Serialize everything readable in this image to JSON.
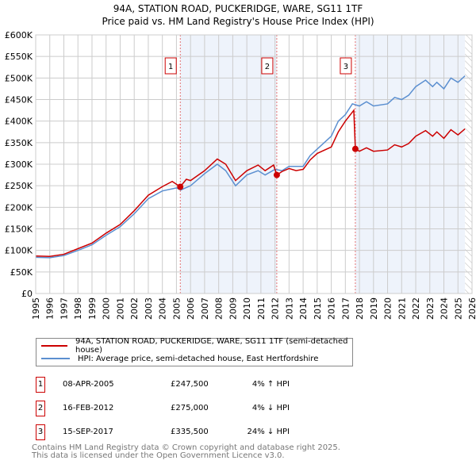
{
  "chart_data": {
    "type": "line",
    "title": "94A, STATION ROAD, PUCKERIDGE, WARE, SG11 1TF",
    "subtitle": "Price paid vs. HM Land Registry's House Price Index (HPI)",
    "xlim": [
      1995,
      2026
    ],
    "ylim": [
      0,
      600000
    ],
    "x_ticks": [
      "1995",
      "1996",
      "1997",
      "1998",
      "1999",
      "2000",
      "2001",
      "2002",
      "2003",
      "2004",
      "2005",
      "2006",
      "2007",
      "2008",
      "2009",
      "2010",
      "2011",
      "2012",
      "2013",
      "2014",
      "2015",
      "2016",
      "2017",
      "2018",
      "2019",
      "2020",
      "2021",
      "2022",
      "2023",
      "2024",
      "2025",
      "2026"
    ],
    "y_ticks": [
      {
        "v": 0,
        "label": "£0"
      },
      {
        "v": 50000,
        "label": "£50K"
      },
      {
        "v": 100000,
        "label": "£100K"
      },
      {
        "v": 150000,
        "label": "£150K"
      },
      {
        "v": 200000,
        "label": "£200K"
      },
      {
        "v": 250000,
        "label": "£250K"
      },
      {
        "v": 300000,
        "label": "£300K"
      },
      {
        "v": 350000,
        "label": "£350K"
      },
      {
        "v": 400000,
        "label": "£400K"
      },
      {
        "v": 450000,
        "label": "£450K"
      },
      {
        "v": 500000,
        "label": "£500K"
      },
      {
        "v": 550000,
        "label": "£550K"
      },
      {
        "v": 600000,
        "label": "£600K"
      }
    ],
    "grid": true,
    "series": [
      {
        "name": "94A, STATION ROAD, PUCKERIDGE, WARE, SG11 1TF (semi-detached house)",
        "color": "#cc0000",
        "x": [
          1995,
          1996,
          1997,
          1998,
          1999,
          2000,
          2001,
          2002,
          2003,
          2004,
          2004.7,
          2005.27,
          2005.7,
          2006,
          2007,
          2007.9,
          2008.5,
          2009.2,
          2010,
          2010.8,
          2011.3,
          2011.9,
          2012.13,
          2012.5,
          2013,
          2013.5,
          2014,
          2014.5,
          2015,
          2016,
          2016.5,
          2017,
          2017.6,
          2017.71,
          2018,
          2018.5,
          2019,
          2020,
          2020.5,
          2021,
          2021.5,
          2022,
          2022.7,
          2023.2,
          2023.5,
          2024,
          2024.5,
          2025,
          2025.5
        ],
        "y": [
          87000,
          86000,
          91000,
          104000,
          117000,
          140000,
          160000,
          192000,
          228000,
          248000,
          260000,
          247500,
          265000,
          262000,
          285000,
          312000,
          300000,
          262000,
          285000,
          298000,
          285000,
          298000,
          275000,
          283000,
          290000,
          285000,
          288000,
          310000,
          325000,
          340000,
          375000,
          400000,
          425000,
          335500,
          330000,
          338000,
          330000,
          333000,
          345000,
          340000,
          348000,
          365000,
          378000,
          365000,
          375000,
          360000,
          380000,
          368000,
          382000
        ]
      },
      {
        "name": "HPI: Average price, semi-detached house, East Hertfordshire",
        "color": "#5b8fd0",
        "x": [
          1995,
          1996,
          1997,
          1998,
          1999,
          2000,
          2001,
          2002,
          2003,
          2004,
          2005,
          2005.3,
          2006,
          2007,
          2007.9,
          2008.5,
          2009.2,
          2010,
          2010.8,
          2011.3,
          2012,
          2012.5,
          2013,
          2014,
          2014.5,
          2015,
          2016,
          2016.5,
          2017,
          2017.5,
          2018,
          2018.5,
          2019,
          2020,
          2020.5,
          2021,
          2021.5,
          2022,
          2022.7,
          2023.2,
          2023.5,
          2024,
          2024.5,
          2025,
          2025.5
        ],
        "y": [
          84000,
          83000,
          88000,
          100000,
          113000,
          135000,
          155000,
          185000,
          220000,
          238000,
          245000,
          240000,
          250000,
          278000,
          300000,
          285000,
          250000,
          275000,
          285000,
          275000,
          288000,
          285000,
          295000,
          295000,
          320000,
          335000,
          365000,
          400000,
          415000,
          440000,
          435000,
          445000,
          435000,
          440000,
          455000,
          450000,
          460000,
          480000,
          495000,
          480000,
          490000,
          475000,
          500000,
          490000,
          505000
        ]
      }
    ],
    "sales": [
      {
        "label": "1",
        "x": 2005.27,
        "y": 247500,
        "date": "08-APR-2005",
        "price": "£247,500",
        "hpi": "4% ↑ HPI"
      },
      {
        "label": "2",
        "x": 2012.13,
        "y": 275000,
        "date": "16-FEB-2012",
        "price": "£275,000",
        "hpi": "4% ↓ HPI"
      },
      {
        "label": "3",
        "x": 2017.71,
        "y": 335500,
        "date": "15-SEP-2017",
        "price": "£335,500",
        "hpi": "24% ↓ HPI"
      }
    ],
    "legend_position": "below"
  },
  "footer": {
    "line1": "Contains HM Land Registry data © Crown copyright and database right 2025.",
    "line2": "This data is licensed under the Open Government Licence v3.0."
  }
}
